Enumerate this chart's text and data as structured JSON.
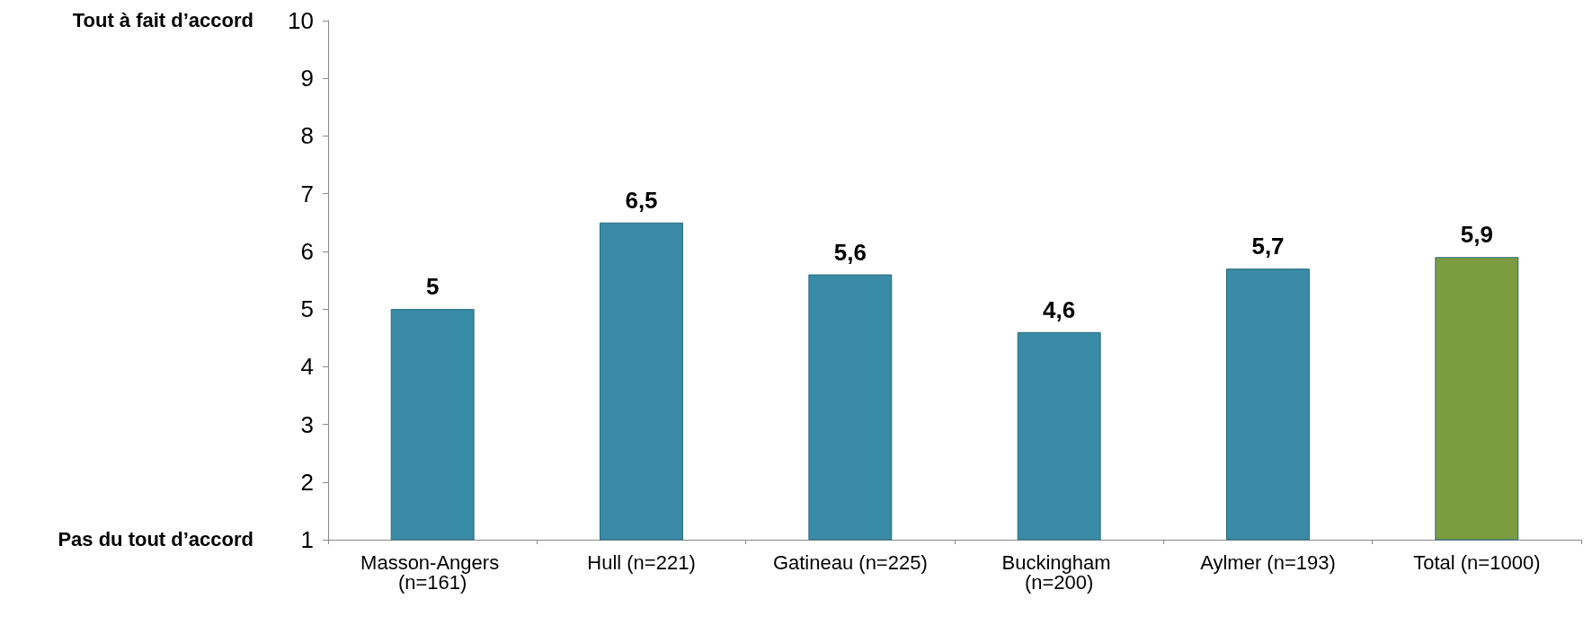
{
  "chart_data": {
    "type": "bar",
    "categories": [
      "Masson-Angers (n=161)",
      "Hull (n=221)",
      "Gatineau (n=225)",
      "Buckingham (n=200)",
      "Aylmer (n=193)",
      "Total (n=1000)"
    ],
    "values": [
      5,
      6.5,
      5.6,
      4.6,
      5.7,
      5.9
    ],
    "colors": [
      "#3a8ba6",
      "#3a8ba6",
      "#3a8ba6",
      "#3a8ba6",
      "#3a8ba6",
      "#7b9c41"
    ],
    "ylim": [
      1,
      10
    ],
    "yticks": [
      1,
      2,
      3,
      4,
      5,
      6,
      7,
      8,
      9,
      10
    ],
    "value_labels": [
      "5",
      "6,5",
      "5,6",
      "4,6",
      "5,7",
      "5,9"
    ],
    "annotations": [
      "Tout à fait d’accord",
      "Pas du tout d’accord"
    ],
    "grid": false
  }
}
